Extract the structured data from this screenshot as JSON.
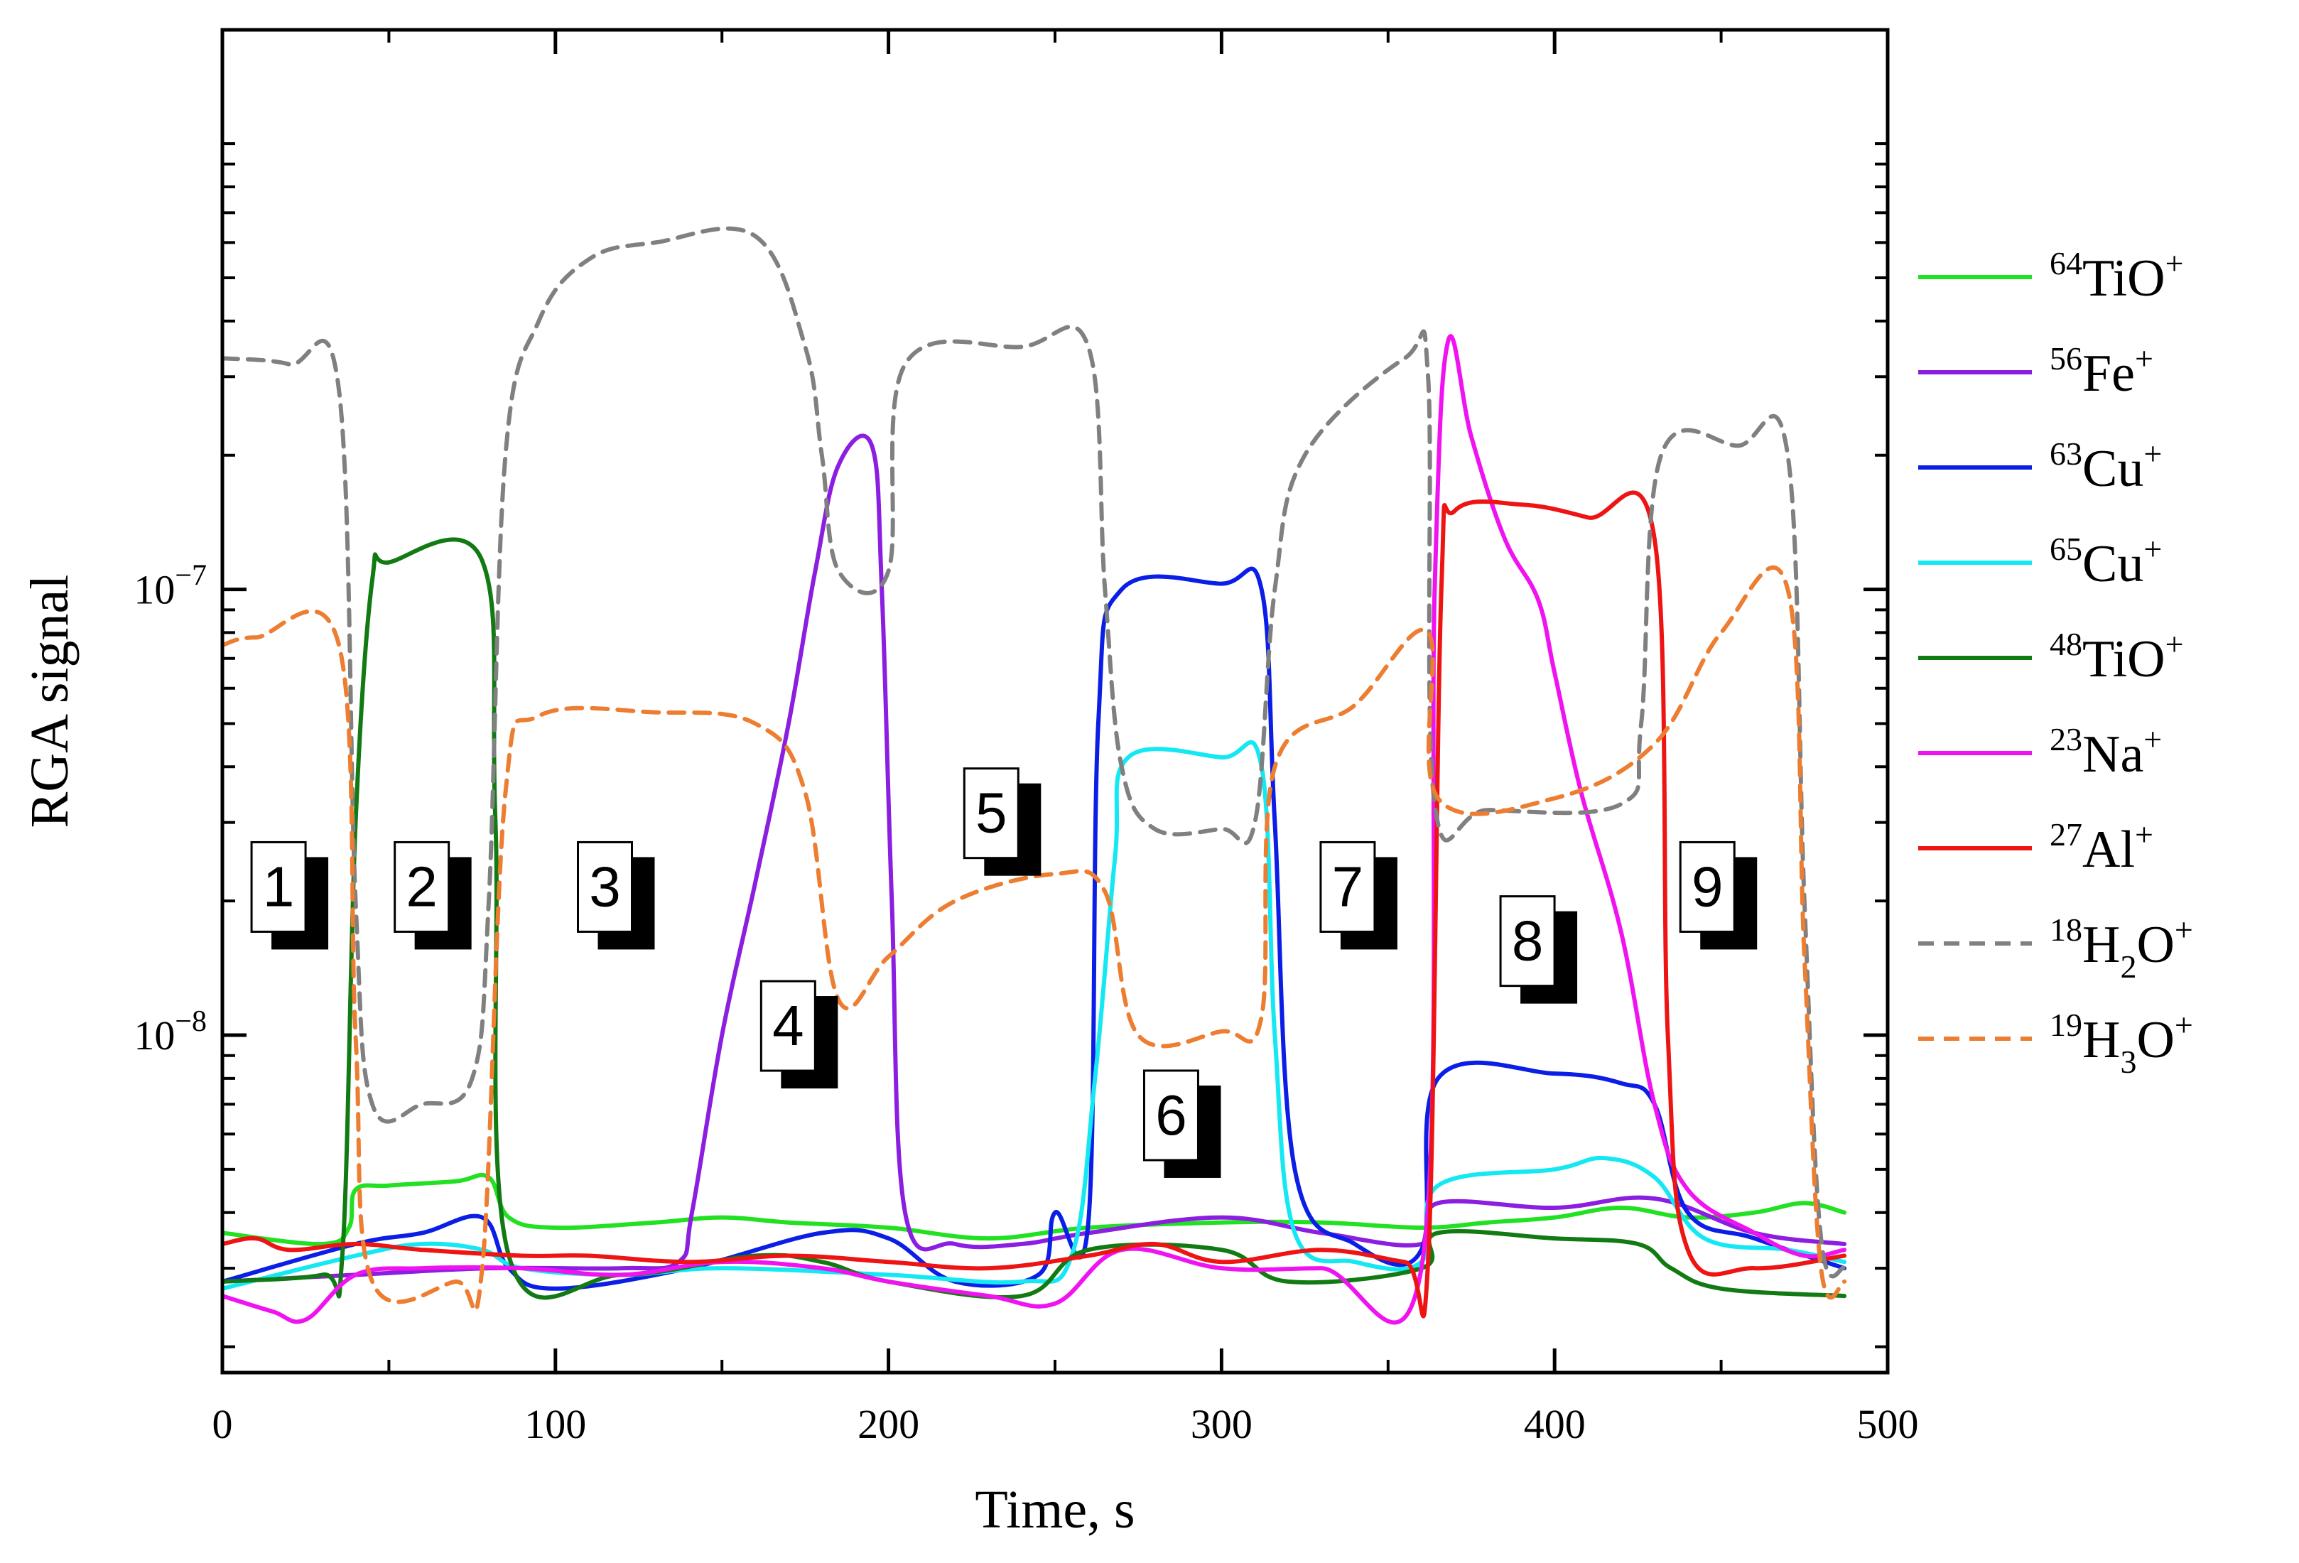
{
  "chart_data": {
    "type": "line",
    "title": "",
    "xlabel": "Time, s",
    "ylabel": "RGA signal",
    "x_scale": "linear",
    "y_scale": "log",
    "xlim": [
      0,
      500
    ],
    "ylim": [
      1.75e-09,
      1.8e-06
    ],
    "x_ticks": [
      0,
      100,
      200,
      300,
      400,
      500
    ],
    "x_tick_labels": [
      "0",
      "100",
      "200",
      "300",
      "400",
      "500"
    ],
    "y_ticks": [
      1e-08,
      1e-07
    ],
    "y_tick_labels": [
      {
        "base": "10",
        "exp": "−8"
      },
      {
        "base": "10",
        "exp": "−7"
      }
    ],
    "legend_position": "right",
    "series": [
      {
        "name": "64TiO+",
        "mass": "64",
        "formula": "TiO",
        "sub": "",
        "charge": "+",
        "color": "#22e022",
        "dash": "solid",
        "points": [
          [
            0,
            3.6e-09
          ],
          [
            30,
            3.4e-09
          ],
          [
            38,
            3.7e-09
          ],
          [
            40,
            4.5e-09
          ],
          [
            50,
            4.6e-09
          ],
          [
            70,
            4.7e-09
          ],
          [
            80,
            4.8e-09
          ],
          [
            86,
            3.9e-09
          ],
          [
            100,
            3.7e-09
          ],
          [
            130,
            3.8e-09
          ],
          [
            150,
            3.9e-09
          ],
          [
            170,
            3.8e-09
          ],
          [
            200,
            3.7e-09
          ],
          [
            230,
            3.5e-09
          ],
          [
            260,
            3.7e-09
          ],
          [
            300,
            3.8e-09
          ],
          [
            330,
            3.8e-09
          ],
          [
            360,
            3.7e-09
          ],
          [
            380,
            3.8e-09
          ],
          [
            400,
            3.9e-09
          ],
          [
            420,
            4.1e-09
          ],
          [
            440,
            3.9e-09
          ],
          [
            460,
            4e-09
          ],
          [
            475,
            4.2e-09
          ],
          [
            487,
            4e-09
          ]
        ]
      },
      {
        "name": "56Fe+",
        "mass": "56",
        "formula": "Fe",
        "sub": "",
        "charge": "+",
        "color": "#8b1ee0",
        "dash": "solid",
        "points": [
          [
            0,
            2.8e-09
          ],
          [
            40,
            2.9e-09
          ],
          [
            80,
            3e-09
          ],
          [
            120,
            3e-09
          ],
          [
            137,
            3.1e-09
          ],
          [
            141,
            4e-09
          ],
          [
            150,
            1e-08
          ],
          [
            160,
            2.2e-08
          ],
          [
            170,
            5e-08
          ],
          [
            178,
            1.1e-07
          ],
          [
            185,
            1.9e-07
          ],
          [
            195,
            2.1e-07
          ],
          [
            198,
            1e-07
          ],
          [
            201,
            2e-08
          ],
          [
            205,
            4e-09
          ],
          [
            220,
            3.4e-09
          ],
          [
            240,
            3.4e-09
          ],
          [
            260,
            3.6e-09
          ],
          [
            300,
            3.9e-09
          ],
          [
            330,
            3.6e-09
          ],
          [
            360,
            3.4e-09
          ],
          [
            365,
            4.2e-09
          ],
          [
            400,
            4.1e-09
          ],
          [
            430,
            4.3e-09
          ],
          [
            460,
            3.6e-09
          ],
          [
            487,
            3.4e-09
          ]
        ]
      },
      {
        "name": "63Cu+",
        "mass": "63",
        "formula": "Cu",
        "sub": "",
        "charge": "+",
        "color": "#0a1ee6",
        "dash": "solid",
        "points": [
          [
            0,
            2.8e-09
          ],
          [
            40,
            3.4e-09
          ],
          [
            60,
            3.6e-09
          ],
          [
            78,
            3.9e-09
          ],
          [
            86,
            3e-09
          ],
          [
            100,
            2.7e-09
          ],
          [
            140,
            3e-09
          ],
          [
            180,
            3.6e-09
          ],
          [
            200,
            3.5e-09
          ],
          [
            220,
            2.8e-09
          ],
          [
            245,
            2.9e-09
          ],
          [
            250,
            4e-09
          ],
          [
            260,
            3.8e-09
          ],
          [
            263,
            5e-08
          ],
          [
            270,
            1e-07
          ],
          [
            300,
            1.03e-07
          ],
          [
            312,
            1e-07
          ],
          [
            316,
            3e-08
          ],
          [
            322,
            5e-09
          ],
          [
            340,
            3.4e-09
          ],
          [
            360,
            3.3e-09
          ],
          [
            365,
            8e-09
          ],
          [
            400,
            8.2e-09
          ],
          [
            420,
            7.8e-09
          ],
          [
            430,
            7e-09
          ],
          [
            440,
            4e-09
          ],
          [
            460,
            3.5e-09
          ],
          [
            487,
            3e-09
          ]
        ]
      },
      {
        "name": "65Cu+",
        "mass": "65",
        "formula": "Cu",
        "sub": "",
        "charge": "+",
        "color": "#14e8f2",
        "dash": "solid",
        "points": [
          [
            0,
            2.7e-09
          ],
          [
            40,
            3.2e-09
          ],
          [
            60,
            3.4e-09
          ],
          [
            78,
            3.3e-09
          ],
          [
            90,
            3e-09
          ],
          [
            120,
            2.9e-09
          ],
          [
            150,
            3e-09
          ],
          [
            200,
            2.9e-09
          ],
          [
            240,
            2.8e-09
          ],
          [
            255,
            3.2e-09
          ],
          [
            262,
            8e-09
          ],
          [
            268,
            2.5e-08
          ],
          [
            272,
            4.2e-08
          ],
          [
            300,
            4.2e-08
          ],
          [
            312,
            4e-08
          ],
          [
            316,
            1e-08
          ],
          [
            322,
            3.6e-09
          ],
          [
            340,
            3.1e-09
          ],
          [
            360,
            3.1e-09
          ],
          [
            365,
            4.6e-09
          ],
          [
            400,
            5e-09
          ],
          [
            415,
            5.3e-09
          ],
          [
            430,
            4.8e-09
          ],
          [
            445,
            3.5e-09
          ],
          [
            470,
            3.3e-09
          ],
          [
            487,
            3.1e-09
          ]
        ]
      },
      {
        "name": "48TiO+",
        "mass": "48",
        "formula": "TiO",
        "sub": "",
        "charge": "+",
        "color": "#127a12",
        "dash": "solid",
        "points": [
          [
            0,
            2.8e-09
          ],
          [
            30,
            2.9e-09
          ],
          [
            36,
            3.2e-09
          ],
          [
            40,
            3e-08
          ],
          [
            45,
            1.05e-07
          ],
          [
            50,
            1.15e-07
          ],
          [
            78,
            1.16e-07
          ],
          [
            82,
            3e-08
          ],
          [
            86,
            3.2e-09
          ],
          [
            120,
            2.9e-09
          ],
          [
            160,
            3.2e-09
          ],
          [
            180,
            3.1e-09
          ],
          [
            200,
            2.8e-09
          ],
          [
            240,
            2.6e-09
          ],
          [
            260,
            3.3e-09
          ],
          [
            300,
            3.3e-09
          ],
          [
            320,
            2.8e-09
          ],
          [
            360,
            3e-09
          ],
          [
            365,
            3.6e-09
          ],
          [
            400,
            3.5e-09
          ],
          [
            425,
            3.4e-09
          ],
          [
            435,
            3e-09
          ],
          [
            450,
            2.7e-09
          ],
          [
            487,
            2.6e-09
          ]
        ]
      },
      {
        "name": "23Na+",
        "mass": "23",
        "formula": "Na",
        "sub": "",
        "charge": "+",
        "color": "#f013f0",
        "dash": "solid",
        "points": [
          [
            0,
            2.6e-09
          ],
          [
            15,
            2.4e-09
          ],
          [
            25,
            2.3e-09
          ],
          [
            40,
            2.9e-09
          ],
          [
            60,
            3e-09
          ],
          [
            90,
            3e-09
          ],
          [
            120,
            2.9e-09
          ],
          [
            150,
            3.1e-09
          ],
          [
            180,
            3e-09
          ],
          [
            200,
            2.8e-09
          ],
          [
            230,
            2.6e-09
          ],
          [
            250,
            2.5e-09
          ],
          [
            270,
            3.3e-09
          ],
          [
            300,
            3e-09
          ],
          [
            330,
            3e-09
          ],
          [
            360,
            3e-09
          ],
          [
            364,
            1e-07
          ],
          [
            368,
            3.6e-07
          ],
          [
            375,
            2.2e-07
          ],
          [
            385,
            1.3e-07
          ],
          [
            395,
            9.5e-08
          ],
          [
            400,
            6.5e-08
          ],
          [
            408,
            3.5e-08
          ],
          [
            420,
            1.7e-08
          ],
          [
            430,
            7e-09
          ],
          [
            440,
            4.5e-09
          ],
          [
            460,
            3.6e-09
          ],
          [
            475,
            3.2e-09
          ],
          [
            487,
            3.3e-09
          ]
        ]
      },
      {
        "name": "27Al+",
        "mass": "27",
        "formula": "Al",
        "sub": "",
        "charge": "+",
        "color": "#ee1414",
        "dash": "solid",
        "points": [
          [
            0,
            3.4e-09
          ],
          [
            10,
            3.5e-09
          ],
          [
            20,
            3.3e-09
          ],
          [
            40,
            3.4e-09
          ],
          [
            60,
            3.3e-09
          ],
          [
            90,
            3.2e-09
          ],
          [
            110,
            3.2e-09
          ],
          [
            140,
            3.1e-09
          ],
          [
            170,
            3.2e-09
          ],
          [
            200,
            3.1e-09
          ],
          [
            230,
            3e-09
          ],
          [
            260,
            3.2e-09
          ],
          [
            280,
            3.4e-09
          ],
          [
            300,
            3.1e-09
          ],
          [
            330,
            3.3e-09
          ],
          [
            355,
            3.1e-09
          ],
          [
            362,
            3.1e-09
          ],
          [
            366,
            1e-07
          ],
          [
            370,
            1.5e-07
          ],
          [
            390,
            1.55e-07
          ],
          [
            410,
            1.45e-07
          ],
          [
            430,
            1.3e-07
          ],
          [
            434,
            1e-08
          ],
          [
            440,
            3.3e-09
          ],
          [
            460,
            3e-09
          ],
          [
            487,
            3.2e-09
          ]
        ]
      },
      {
        "name": "18H2O+",
        "mass": "18",
        "formula": "H",
        "sub": "2",
        "formula2": "O",
        "charge": "+",
        "color": "#808080",
        "dash": "dashed",
        "points": [
          [
            0,
            3.3e-07
          ],
          [
            20,
            3.2e-07
          ],
          [
            35,
            2.8e-07
          ],
          [
            40,
            2e-08
          ],
          [
            45,
            7e-09
          ],
          [
            60,
            7e-09
          ],
          [
            75,
            8e-09
          ],
          [
            80,
            2e-08
          ],
          [
            85,
            2e-07
          ],
          [
            95,
            4e-07
          ],
          [
            110,
            5.5e-07
          ],
          [
            130,
            6e-07
          ],
          [
            160,
            6.2e-07
          ],
          [
            175,
            3.5e-07
          ],
          [
            180,
            2e-07
          ],
          [
            185,
            1.1e-07
          ],
          [
            200,
            1.1e-07
          ],
          [
            205,
            3.2e-07
          ],
          [
            240,
            3.5e-07
          ],
          [
            260,
            3.5e-07
          ],
          [
            265,
            1e-07
          ],
          [
            270,
            4e-08
          ],
          [
            280,
            2.9e-08
          ],
          [
            300,
            2.9e-08
          ],
          [
            310,
            3e-08
          ],
          [
            316,
            1e-07
          ],
          [
            325,
            2e-07
          ],
          [
            355,
            3.3e-07
          ],
          [
            362,
            3e-07
          ],
          [
            364,
            3.3e-08
          ],
          [
            380,
            3.2e-08
          ],
          [
            420,
            3.3e-08
          ],
          [
            426,
            5e-08
          ],
          [
            432,
            2e-07
          ],
          [
            455,
            2.1e-07
          ],
          [
            470,
            2e-07
          ],
          [
            475,
            2e-08
          ],
          [
            480,
            3.5e-09
          ],
          [
            487,
            3e-09
          ]
        ]
      },
      {
        "name": "19H3O+",
        "mass": "19",
        "formula": "H",
        "sub": "3",
        "formula2": "O",
        "charge": "+",
        "color": "#ed7d31",
        "dash": "dashed",
        "points": [
          [
            0,
            7.5e-08
          ],
          [
            10,
            7.8e-08
          ],
          [
            35,
            7.5e-08
          ],
          [
            40,
            1e-08
          ],
          [
            45,
            2.8e-09
          ],
          [
            70,
            2.8e-09
          ],
          [
            78,
            3e-09
          ],
          [
            85,
            3.5e-08
          ],
          [
            95,
            5.2e-08
          ],
          [
            130,
            5.3e-08
          ],
          [
            160,
            5e-08
          ],
          [
            175,
            3.5e-08
          ],
          [
            185,
            1.2e-08
          ],
          [
            200,
            1.5e-08
          ],
          [
            220,
            2e-08
          ],
          [
            250,
            2.3e-08
          ],
          [
            265,
            2.1e-08
          ],
          [
            275,
            1e-08
          ],
          [
            300,
            1.02e-08
          ],
          [
            312,
            1.1e-08
          ],
          [
            316,
            4e-08
          ],
          [
            340,
            5.5e-08
          ],
          [
            362,
            8e-08
          ],
          [
            365,
            3.4e-08
          ],
          [
            400,
            3.4e-08
          ],
          [
            430,
            4.5e-08
          ],
          [
            450,
            8e-08
          ],
          [
            470,
            1e-07
          ],
          [
            475,
            1.5e-08
          ],
          [
            480,
            3e-09
          ],
          [
            487,
            2.8e-09
          ]
        ]
      }
    ],
    "annotations": [
      {
        "label": "1",
        "x": 19,
        "y": 2.05e-08
      },
      {
        "label": "2",
        "x": 62,
        "y": 2.05e-08
      },
      {
        "label": "3",
        "x": 117,
        "y": 2.05e-08
      },
      {
        "label": "4",
        "x": 172,
        "y": 1e-08
      },
      {
        "label": "5",
        "x": 233,
        "y": 3e-08
      },
      {
        "label": "6",
        "x": 287,
        "y": 6.3e-09
      },
      {
        "label": "7",
        "x": 340,
        "y": 2.05e-08
      },
      {
        "label": "8",
        "x": 394,
        "y": 1.55e-08
      },
      {
        "label": "9",
        "x": 448,
        "y": 2.05e-08
      }
    ]
  }
}
